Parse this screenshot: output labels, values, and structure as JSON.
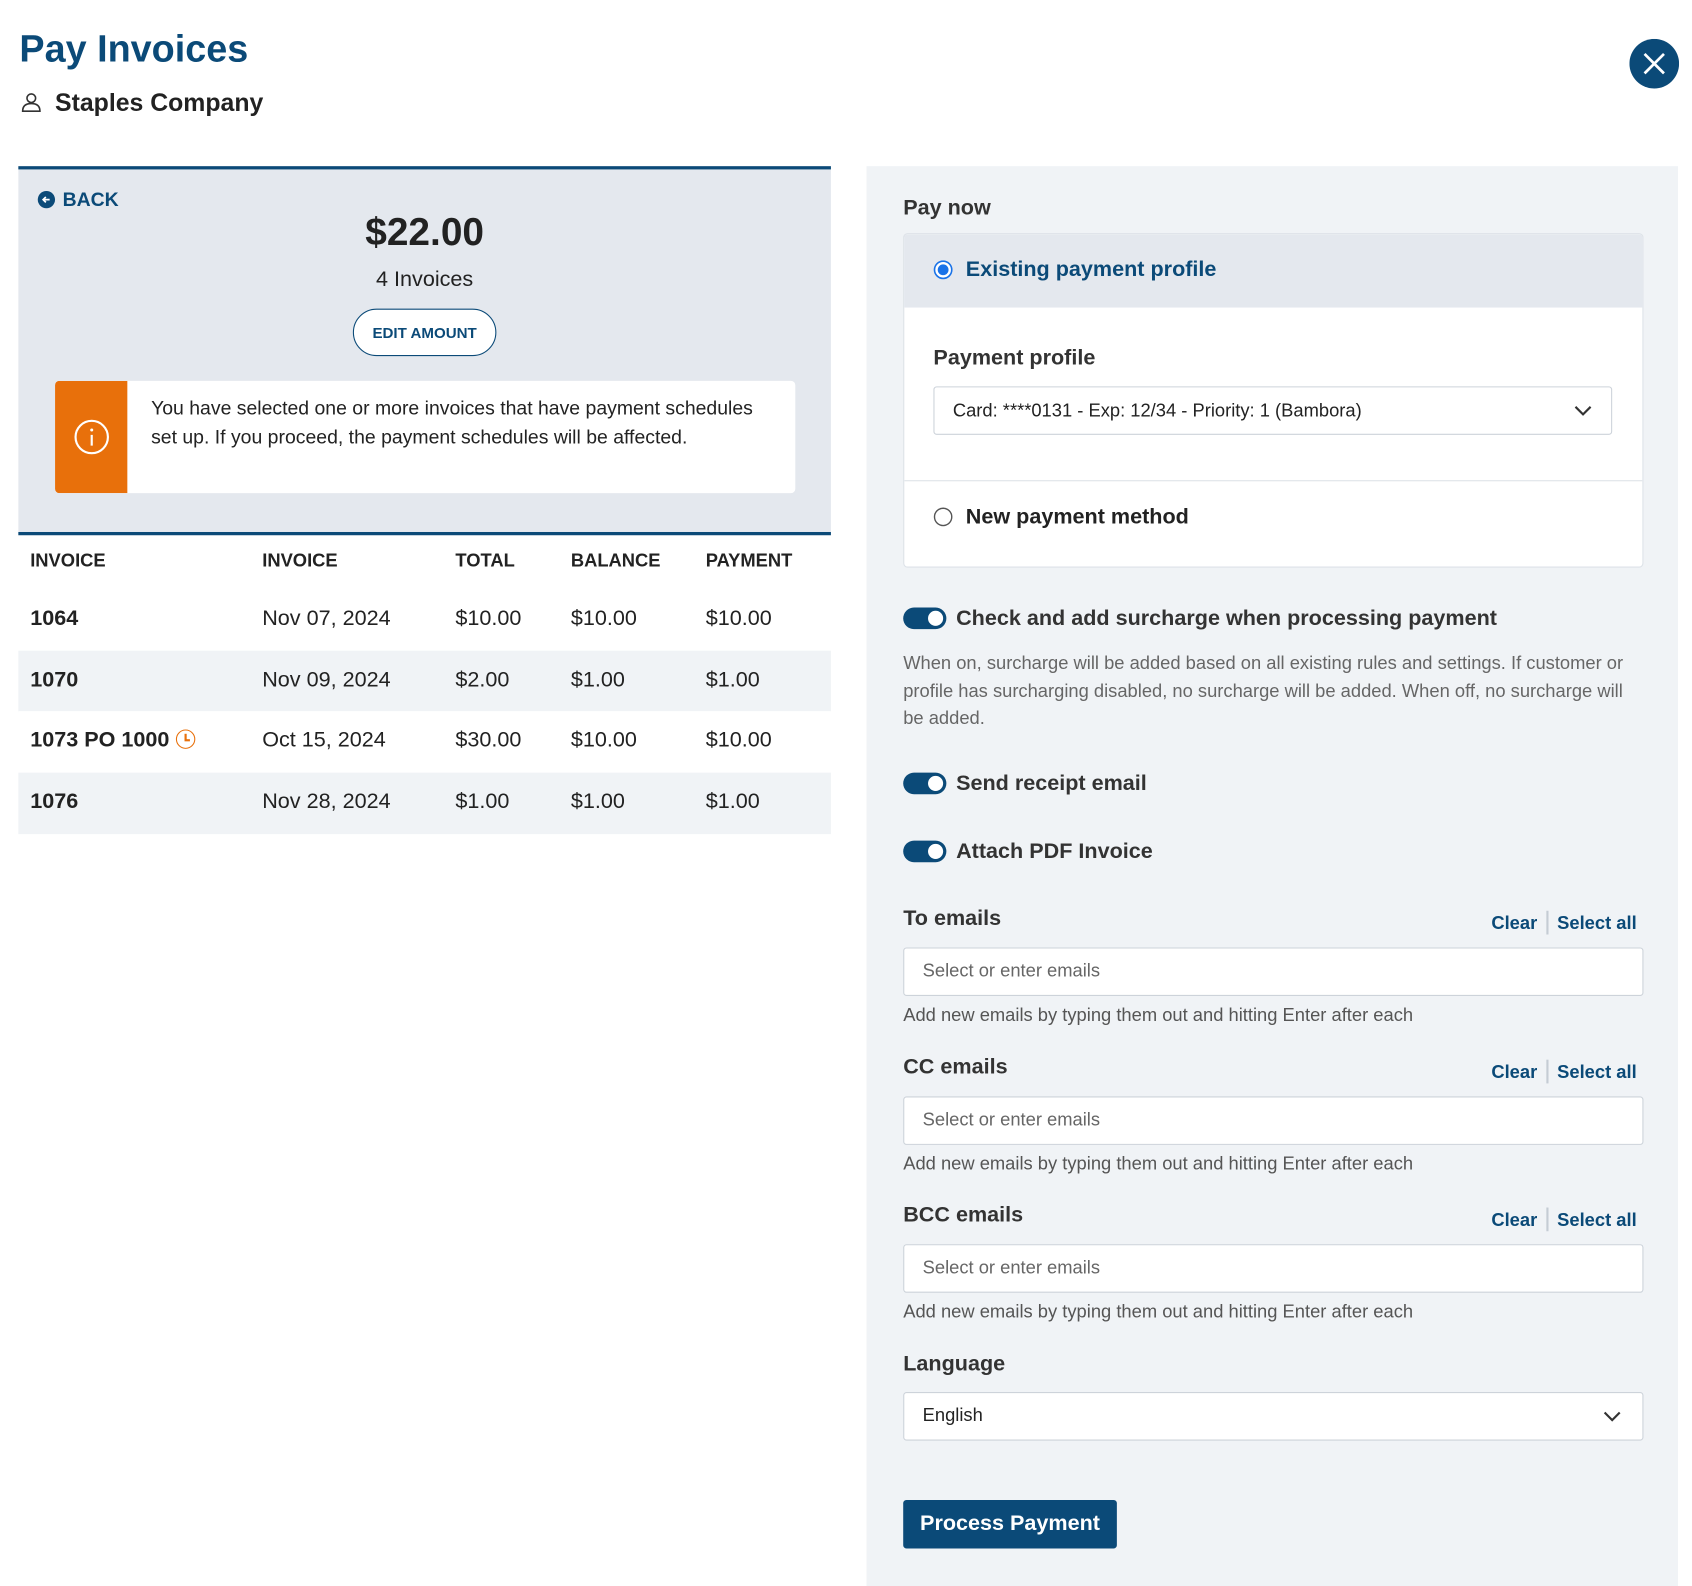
{
  "header": {
    "title": "Pay Invoices",
    "customer": "Staples Company"
  },
  "summary": {
    "back": "BACK",
    "amount": "$22.00",
    "invoice_count": "4 Invoices",
    "edit_amount": "EDIT AMOUNT",
    "warning": "You have selected one or more invoices that have payment schedules set up. If you proceed, the payment schedules will be affected."
  },
  "table": {
    "columns": [
      "INVOICE",
      "INVOICE",
      "TOTAL",
      "BALANCE",
      "PAYMENT"
    ],
    "rows": [
      [
        "1064",
        "Nov 07, 2024",
        "$10.00",
        "$10.00",
        "$10.00"
      ],
      [
        "1070",
        "Nov 09, 2024",
        "$2.00",
        "$1.00",
        "$1.00"
      ],
      [
        "1073 PO 1000",
        "Oct 15, 2024",
        "$30.00",
        "$10.00",
        "$10.00"
      ],
      [
        "1076",
        "Nov 28, 2024",
        "$1.00",
        "$1.00",
        "$1.00"
      ]
    ]
  },
  "payment": {
    "heading": "Pay now",
    "existing_profile": "Existing payment profile",
    "profile_label": "Payment profile",
    "profile_value": "Card: ****0131 - Exp: 12/34 - Priority: 1 (Bambora)",
    "new_method": "New payment method"
  },
  "toggles": [
    {
      "label": "Check and add surcharge when processing payment",
      "description": "When on, surcharge will be added based on all existing rules and settings. If customer or profile has surcharging disabled, no surcharge will be added. When off, no surcharge will be added."
    },
    {
      "label": "Send receipt email"
    },
    {
      "label": "Attach PDF Invoice"
    }
  ],
  "email_fields": [
    {
      "label": "To emails",
      "clear": "Clear",
      "select_all": "Select all",
      "placeholder": "Select or enter emails",
      "hint": "Add new emails by typing them out and hitting Enter after each"
    },
    {
      "label": "CC emails",
      "clear": "Clear",
      "select_all": "Select all",
      "placeholder": "Select or enter emails",
      "hint": "Add new emails by typing them out and hitting Enter after each"
    },
    {
      "label": "BCC emails",
      "clear": "Clear",
      "select_all": "Select all",
      "placeholder": "Select or enter emails",
      "hint": "Add new emails by typing them out and hitting Enter after each"
    }
  ],
  "language": {
    "label": "Language",
    "value": "English"
  },
  "submit": "Process Payment"
}
